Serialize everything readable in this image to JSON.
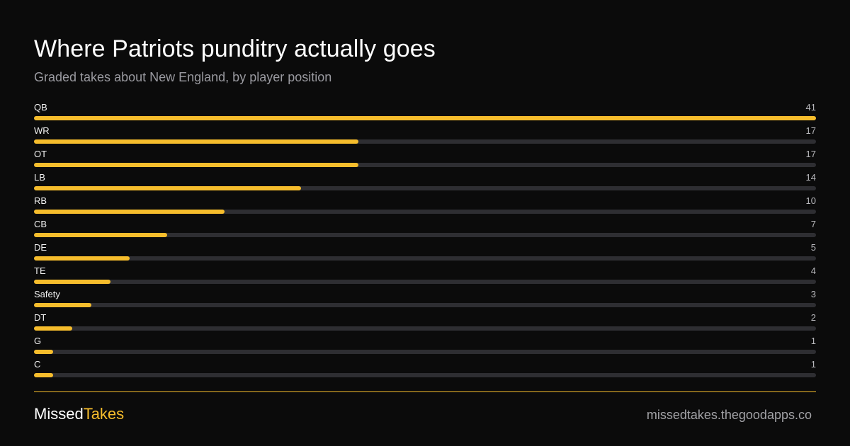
{
  "header": {
    "title": "Where Patriots punditry actually goes",
    "subtitle": "Graded takes about New England, by player position"
  },
  "chart_data": {
    "type": "bar",
    "orientation": "horizontal",
    "categories": [
      "QB",
      "WR",
      "OT",
      "LB",
      "RB",
      "CB",
      "DE",
      "TE",
      "Safety",
      "DT",
      "G",
      "C"
    ],
    "values": [
      41,
      17,
      17,
      14,
      10,
      7,
      5,
      4,
      3,
      2,
      1,
      1
    ],
    "xlim": [
      0,
      41
    ],
    "grid": false,
    "legend": "none",
    "colors": {
      "fill": "#f6bd2c",
      "track": "#2e2e32"
    }
  },
  "footer": {
    "brand_part1": "Missed",
    "brand_part2": "Takes",
    "site": "missedtakes.thegoodapps.co"
  },
  "colors": {
    "background": "#0b0b0b",
    "accent": "#f6bd2c"
  }
}
